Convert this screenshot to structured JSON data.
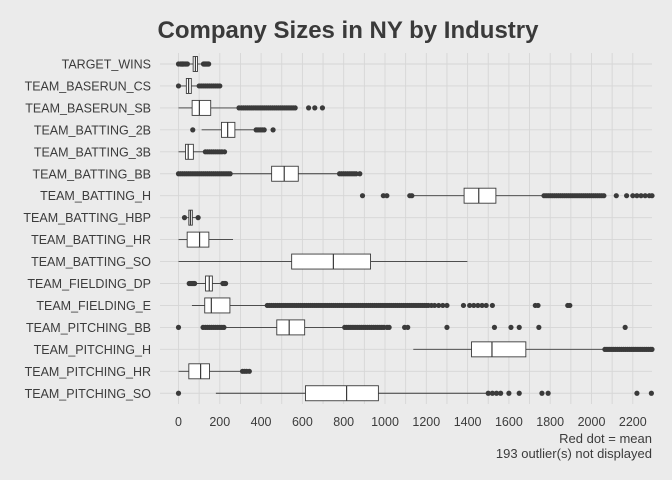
{
  "chart_data": {
    "type": "boxplot",
    "title": "Company Sizes in NY by Industry",
    "caption_lines": [
      "Red dot = mean",
      "193 outlier(s) not displayed"
    ],
    "xlim": [
      -80,
      2300
    ],
    "x_ticks": [
      0,
      200,
      400,
      600,
      800,
      1000,
      1200,
      1400,
      1600,
      1800,
      2000,
      2200
    ],
    "grid": true,
    "series": [
      {
        "name": "TARGET_WINS",
        "q1": 71,
        "median": 82,
        "q3": 92,
        "whisker_low": 49,
        "whisker_high": 118,
        "outliers": [
          0,
          10,
          12,
          15,
          18,
          20,
          22,
          25,
          30,
          34,
          38,
          43,
          121,
          124,
          127,
          130,
          133,
          136,
          140,
          143,
          146
        ]
      },
      {
        "name": "TEAM_BASERUN_CS",
        "q1": 38,
        "median": 49,
        "q3": 62,
        "whisker_low": 0,
        "whisker_high": 97,
        "outliers": [
          0,
          100,
          110,
          120,
          130,
          140,
          150,
          160,
          170,
          180,
          190,
          200
        ]
      },
      {
        "name": "TEAM_BASERUN_SB",
        "q1": 66,
        "median": 101,
        "q3": 156,
        "whisker_low": 0,
        "whisker_high": 290,
        "outliers": [
          293,
          305,
          315,
          325,
          335,
          345,
          355,
          365,
          375,
          385,
          395,
          405,
          415,
          425,
          435,
          445,
          455,
          465,
          475,
          485,
          495,
          505,
          515,
          525,
          535,
          545,
          555,
          565,
          630,
          660,
          697
        ]
      },
      {
        "name": "TEAM_BATTING_2B",
        "q1": 208,
        "median": 238,
        "q3": 273,
        "whisker_low": 112,
        "whisker_high": 373,
        "outliers": [
          69,
          376,
          385,
          395,
          405,
          415,
          458
        ]
      },
      {
        "name": "TEAM_BATTING_3B",
        "q1": 34,
        "median": 47,
        "q3": 72,
        "whisker_low": 0,
        "whisker_high": 128,
        "outliers": [
          130,
          140,
          150,
          160,
          170,
          180,
          190,
          200,
          210,
          223
        ]
      },
      {
        "name": "TEAM_BATTING_BB",
        "q1": 451,
        "median": 512,
        "q3": 580,
        "whisker_low": 258,
        "whisker_high": 776,
        "outliers": [
          0,
          10,
          20,
          30,
          40,
          50,
          60,
          70,
          80,
          90,
          100,
          110,
          120,
          130,
          140,
          150,
          160,
          170,
          180,
          190,
          200,
          210,
          220,
          230,
          240,
          250,
          780,
          790,
          800,
          810,
          820,
          830,
          840,
          850,
          860,
          878
        ]
      },
      {
        "name": "TEAM_BATTING_H",
        "q1": 1383,
        "median": 1454,
        "q3": 1537,
        "whisker_low": 1137,
        "whisker_high": 1767,
        "outliers": [
          891,
          992,
          1009,
          1120,
          1130,
          1770,
          1780,
          1790,
          1800,
          1810,
          1820,
          1830,
          1840,
          1850,
          1860,
          1870,
          1880,
          1890,
          1900,
          1910,
          1920,
          1930,
          1940,
          1950,
          1960,
          1970,
          1980,
          1990,
          2000,
          2010,
          2020,
          2030,
          2040,
          2050,
          2060,
          2120,
          2170,
          2200,
          2220,
          2240,
          2260,
          2280,
          2300
        ]
      },
      {
        "name": "TEAM_BATTING_HBP",
        "q1": 50,
        "median": 58,
        "q3": 67,
        "whisker_low": 42,
        "whisker_high": 89,
        "outliers": [
          29,
          95
        ]
      },
      {
        "name": "TEAM_BATTING_HR",
        "q1": 42,
        "median": 102,
        "q3": 147,
        "whisker_low": 0,
        "whisker_high": 264,
        "outliers": []
      },
      {
        "name": "TEAM_BATTING_SO",
        "q1": 548,
        "median": 750,
        "q3": 930,
        "whisker_low": 0,
        "whisker_high": 1399,
        "outliers": []
      },
      {
        "name": "TEAM_FIELDING_DP",
        "q1": 131,
        "median": 149,
        "q3": 164,
        "whisker_low": 84,
        "whisker_high": 212,
        "outliers": [
          52,
          60,
          66,
          72,
          78,
          215,
          222,
          228
        ]
      },
      {
        "name": "TEAM_FIELDING_E",
        "q1": 127,
        "median": 159,
        "q3": 249,
        "whisker_low": 65,
        "whisker_high": 424,
        "outliers": [
          430,
          440,
          450,
          460,
          470,
          480,
          490,
          500,
          510,
          520,
          530,
          540,
          550,
          560,
          570,
          580,
          590,
          600,
          610,
          620,
          630,
          640,
          650,
          660,
          670,
          680,
          690,
          700,
          710,
          720,
          730,
          740,
          750,
          760,
          770,
          780,
          790,
          800,
          810,
          820,
          830,
          840,
          850,
          860,
          870,
          880,
          890,
          900,
          910,
          920,
          930,
          940,
          950,
          960,
          970,
          980,
          990,
          1000,
          1010,
          1020,
          1030,
          1040,
          1050,
          1060,
          1070,
          1080,
          1090,
          1100,
          1110,
          1120,
          1130,
          1140,
          1150,
          1160,
          1170,
          1180,
          1190,
          1200,
          1210,
          1225,
          1240,
          1260,
          1280,
          1300,
          1380,
          1410,
          1430,
          1450,
          1470,
          1490,
          1520,
          1728,
          1741,
          1885,
          1895
        ]
      },
      {
        "name": "TEAM_PITCHING_BB",
        "q1": 476,
        "median": 536,
        "q3": 611,
        "whisker_low": 226,
        "whisker_high": 800,
        "outliers": [
          0,
          119,
          130,
          140,
          150,
          160,
          170,
          180,
          190,
          200,
          210,
          220,
          805,
          815,
          825,
          835,
          845,
          855,
          865,
          875,
          885,
          895,
          905,
          915,
          925,
          935,
          945,
          955,
          965,
          975,
          985,
          995,
          1010,
          1020,
          1095,
          1110,
          1300,
          1530,
          1610,
          1650,
          1745,
          2163
        ]
      },
      {
        "name": "TEAM_PITCHING_H",
        "q1": 1419,
        "median": 1518,
        "q3": 1682,
        "whisker_low": 1137,
        "whisker_high": 2062,
        "outliers": [
          2065,
          2075,
          2085,
          2095,
          2105,
          2115,
          2125,
          2135,
          2145,
          2155,
          2165,
          2175,
          2185,
          2195,
          2205,
          2215,
          2225,
          2235,
          2245,
          2255,
          2265,
          2275,
          2285,
          2295
        ]
      },
      {
        "name": "TEAM_PITCHING_HR",
        "q1": 50,
        "median": 107,
        "q3": 150,
        "whisker_low": 0,
        "whisker_high": 301,
        "outliers": [
          310,
          320,
          330,
          343
        ]
      },
      {
        "name": "TEAM_PITCHING_SO",
        "q1": 615,
        "median": 814,
        "q3": 968,
        "whisker_low": 181,
        "whisker_high": 1494,
        "outliers": [
          0,
          1500,
          1520,
          1540,
          1560,
          1600,
          1650,
          1760,
          1790,
          2220,
          2290
        ]
      }
    ]
  }
}
